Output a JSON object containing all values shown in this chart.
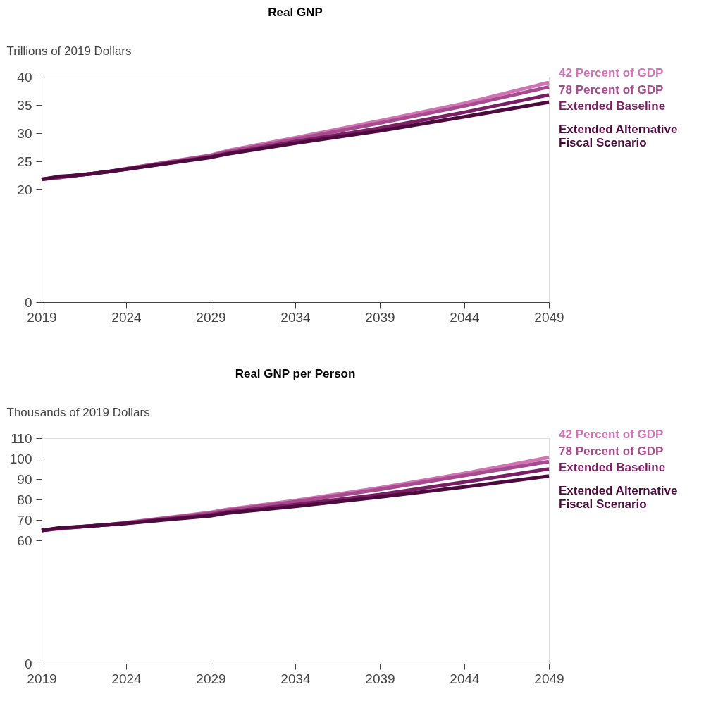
{
  "chart_data": [
    {
      "type": "line",
      "title": "Real GNP",
      "ylabel": "Trillions of 2019 Dollars",
      "xlim": [
        2019,
        2049
      ],
      "xticks": [
        2019,
        2024,
        2029,
        2034,
        2039,
        2044,
        2049
      ],
      "ylim": [
        0,
        40
      ],
      "yticks": [
        0,
        20,
        25,
        30,
        35,
        40
      ],
      "grid": false,
      "legend": false,
      "marker": "none",
      "line_style": "solid",
      "x": [
        2019,
        2020,
        2021,
        2022,
        2023,
        2024,
        2029,
        2030,
        2034,
        2039,
        2044,
        2049
      ],
      "series": [
        {
          "name": "42 Percent of GDP",
          "color": "#cf74b5",
          "values": [
            21.8,
            22.1,
            22.5,
            22.8,
            23.2,
            23.7,
            26.1,
            26.9,
            29.2,
            32.2,
            35.3,
            39.0
          ]
        },
        {
          "name": "78 Percent of GDP",
          "color": "#a84a8e",
          "values": [
            21.8,
            22.1,
            22.5,
            22.8,
            23.2,
            23.7,
            26.0,
            26.7,
            28.9,
            31.8,
            34.8,
            38.2
          ]
        },
        {
          "name": "Extended Baseline",
          "color": "#7a1f63",
          "values": [
            21.8,
            22.2,
            22.5,
            22.8,
            23.2,
            23.6,
            25.8,
            26.4,
            28.5,
            30.9,
            33.7,
            36.8
          ]
        },
        {
          "name": "Extended Alternative\nFiscal Scenario",
          "color": "#4d0a3e",
          "values": [
            21.8,
            22.3,
            22.5,
            22.8,
            23.2,
            23.6,
            25.7,
            26.3,
            28.2,
            30.4,
            32.9,
            35.5
          ]
        }
      ]
    },
    {
      "type": "line",
      "title": "Real GNP per Person",
      "ylabel": "Thousands of 2019 Dollars",
      "xlim": [
        2019,
        2049
      ],
      "xticks": [
        2019,
        2024,
        2029,
        2034,
        2039,
        2044,
        2049
      ],
      "ylim": [
        0,
        110
      ],
      "yticks": [
        0,
        60,
        70,
        80,
        90,
        100,
        110
      ],
      "grid": false,
      "legend": false,
      "marker": "none",
      "line_style": "solid",
      "x": [
        2019,
        2020,
        2021,
        2022,
        2023,
        2024,
        2029,
        2030,
        2034,
        2039,
        2044,
        2049
      ],
      "series": [
        {
          "name": "42 Percent of GDP",
          "color": "#cf74b5",
          "values": [
            65.0,
            65.8,
            66.5,
            67.2,
            67.9,
            68.8,
            73.8,
            75.3,
            79.6,
            85.8,
            92.8,
            100.6
          ]
        },
        {
          "name": "78 Percent of GDP",
          "color": "#a84a8e",
          "values": [
            65.0,
            65.8,
            66.5,
            67.2,
            67.9,
            68.7,
            73.4,
            74.9,
            79.0,
            85.0,
            91.8,
            98.6
          ]
        },
        {
          "name": "Extended Baseline",
          "color": "#7a1f63",
          "values": [
            65.0,
            66.0,
            66.6,
            67.2,
            67.8,
            68.5,
            72.6,
            74.0,
            77.6,
            82.5,
            88.6,
            95.0
          ]
        },
        {
          "name": "Extended Alternative\nFiscal Scenario",
          "color": "#4d0a3e",
          "values": [
            65.0,
            66.2,
            66.7,
            67.2,
            67.8,
            68.4,
            72.1,
            73.5,
            76.7,
            81.3,
            86.2,
            91.5
          ]
        }
      ]
    }
  ]
}
